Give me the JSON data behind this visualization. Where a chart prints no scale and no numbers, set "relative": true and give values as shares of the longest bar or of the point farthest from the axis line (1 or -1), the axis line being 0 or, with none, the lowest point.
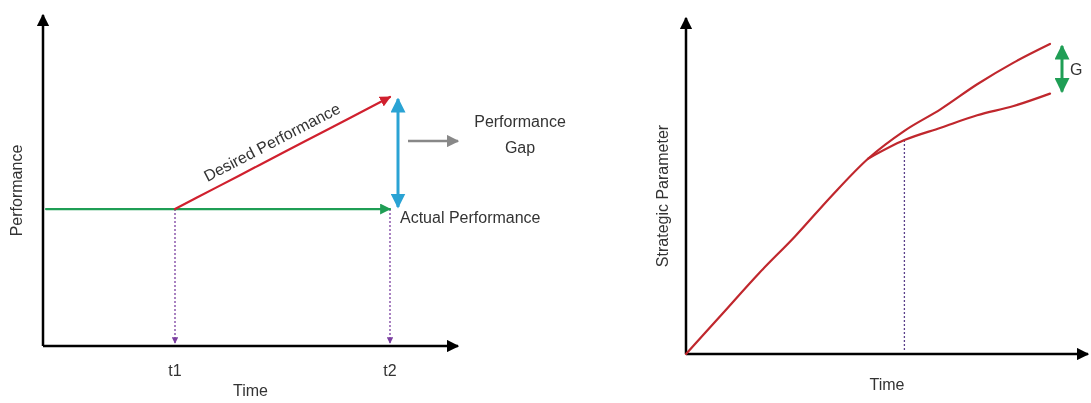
{
  "chart_data": [
    {
      "type": "line",
      "relative": true,
      "xlabel": "Time",
      "ylabel": "Performance",
      "tick_labels": "x",
      "categories": [
        null,
        null,
        null,
        "t1",
        null,
        null,
        null,
        null,
        "t2"
      ],
      "series": [
        {
          "name": "Actual Performance",
          "color": "#1f9e55",
          "values": [
            0.55,
            0.55,
            0.55,
            0.55,
            0.55,
            0.55,
            0.55,
            0.55,
            0.55
          ]
        },
        {
          "name": "Desired Performance",
          "color": "#d0202e",
          "values": [
            null,
            null,
            null,
            0.55,
            0.64,
            0.73,
            0.82,
            0.91,
            1
          ]
        }
      ],
      "ref_lines": [
        {
          "axis": "x",
          "value": "t1",
          "color": "#7b3fa0",
          "line_style": "dotted"
        },
        {
          "axis": "x",
          "value": "t2",
          "color": "#7b3fa0",
          "line_style": "dotted"
        }
      ],
      "annotations": [
        "Performance Gap"
      ]
    },
    {
      "type": "line",
      "relative": true,
      "xlabel": "Time",
      "ylabel": "Strategic Parameter",
      "tick_labels": false,
      "categories": [
        null,
        null,
        null,
        null,
        null,
        null,
        null,
        null,
        null,
        null,
        null
      ],
      "series": [
        {
          "color": "#c0272d",
          "values": [
            0,
            0.13,
            0.26,
            0.38,
            0.51,
            0.63,
            0.72,
            0.79,
            0.87,
            0.94,
            1
          ]
        },
        {
          "color": "#c0272d",
          "values": [
            null,
            null,
            null,
            null,
            null,
            0.63,
            0.69,
            0.73,
            0.77,
            0.8,
            0.84
          ]
        }
      ],
      "annotations": [
        "G"
      ]
    }
  ]
}
